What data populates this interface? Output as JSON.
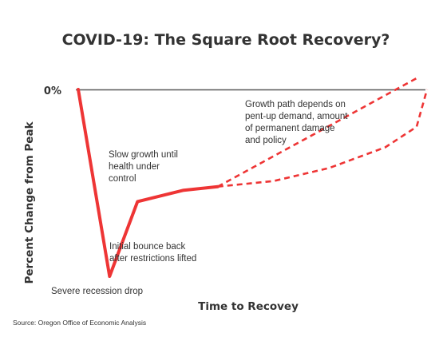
{
  "colors": {
    "series": "#ee3535",
    "axis": "#595959",
    "text": "#333333"
  },
  "chart_data": {
    "type": "line",
    "title": "COVID-19: The Square Root Recovery?",
    "xlabel": "Time to Recovey",
    "ylabel": "Percent Change from Peak",
    "y_tick_label": "0%",
    "grid": false,
    "legend": "none",
    "note": "Illustrative schematic; axes carry no numeric scale.",
    "series": [
      {
        "style": "solid",
        "points": [
          [
            0.0,
            0.0
          ],
          [
            0.09,
            -1.0
          ],
          [
            0.17,
            -0.6
          ],
          [
            0.3,
            -0.54
          ],
          [
            0.4,
            -0.52
          ]
        ]
      },
      {
        "style": "dashed",
        "points": [
          [
            0.4,
            -0.52
          ],
          [
            0.97,
            0.06
          ]
        ]
      },
      {
        "style": "dashed",
        "points": [
          [
            0.4,
            -0.52
          ],
          [
            0.56,
            -0.49
          ],
          [
            0.72,
            -0.42
          ],
          [
            0.88,
            -0.31
          ],
          [
            0.97,
            -0.2
          ],
          [
            1.0,
            0.0
          ]
        ]
      }
    ]
  },
  "annotations": [
    {
      "lines": [
        "Severe recession drop"
      ]
    },
    {
      "lines": [
        "Initial bounce back",
        "after restrictions lifted"
      ]
    },
    {
      "lines": [
        "Slow growth until",
        "health under",
        "control"
      ]
    },
    {
      "lines": [
        "Growth path depends on",
        "pent-up demand, amount",
        "of permanent damage",
        "and policy"
      ]
    }
  ],
  "source": "Source: Oregon Office of Economic Analysis"
}
